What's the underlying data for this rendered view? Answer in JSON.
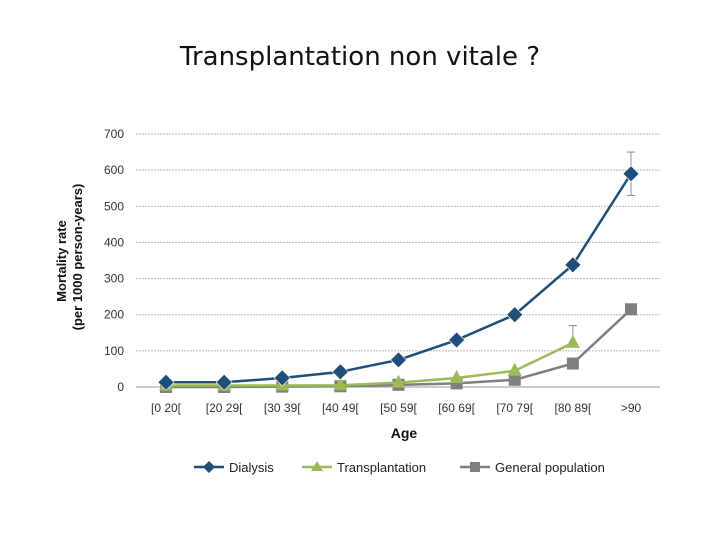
{
  "slide": {
    "title": "Transplantation non vitale ?"
  },
  "chart_data": {
    "type": "line",
    "xlabel": "Age",
    "ylabel_line1": "Mortality rate",
    "ylabel_line2": "(per 1000 person-years)",
    "ylim": [
      0,
      700
    ],
    "yticks": [
      "0",
      "100",
      "200",
      "300",
      "400",
      "500",
      "600",
      "700"
    ],
    "categories": [
      "[0 20[",
      "[20 29[",
      "[30 39[",
      "[40 49[",
      "[50 59[",
      "[60 69[",
      "[70 79[",
      "[80 89[",
      ">90"
    ],
    "grid": true,
    "legend_position": "bottom",
    "series": [
      {
        "name": "Dialysis",
        "color": "#1f4e79",
        "marker": "diamond",
        "values": [
          13,
          13,
          25,
          42,
          75,
          130,
          200,
          338,
          590
        ],
        "error_bar": {
          "index": 8,
          "low": 530,
          "high": 650
        }
      },
      {
        "name": "Transplantation",
        "color": "#9bbb59",
        "marker": "triangle",
        "values": [
          4,
          4,
          4,
          5,
          12,
          25,
          45,
          122,
          null
        ],
        "error_bar": {
          "index": 7,
          "low": 115,
          "high": 170
        }
      },
      {
        "name": "General population",
        "color": "#7f7f7f",
        "marker": "square",
        "values": [
          0,
          0,
          1,
          2,
          6,
          10,
          20,
          65,
          215
        ]
      }
    ]
  }
}
